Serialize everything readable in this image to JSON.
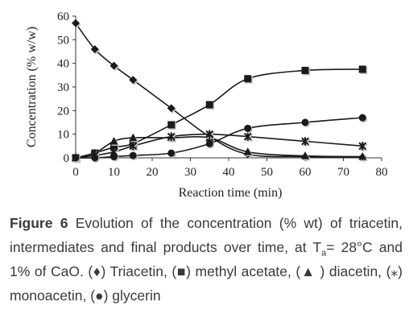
{
  "chart_data": {
    "type": "line",
    "xlabel": "Reaction time (min)",
    "ylabel": "Concentration (% w/w)",
    "xlim": [
      0,
      80
    ],
    "ylim": [
      0,
      60
    ],
    "xticks": [
      "0",
      "10",
      "20",
      "30",
      "40",
      "50",
      "60",
      "70",
      "80"
    ],
    "yticks": [
      "0",
      "10",
      "20",
      "30",
      "40",
      "50",
      "60"
    ],
    "grid": false,
    "series": [
      {
        "marker": "diamond",
        "x": [
          0,
          5,
          10,
          15,
          25,
          35,
          45,
          60,
          75
        ],
        "y": [
          57,
          46,
          39,
          33,
          21,
          9,
          1.5,
          0.5,
          0.3
        ]
      },
      {
        "marker": "square",
        "x": [
          0,
          5,
          10,
          15,
          25,
          35,
          45,
          60,
          75
        ],
        "y": [
          0,
          2,
          4.5,
          6,
          14,
          22.5,
          33.5,
          37,
          37.5
        ]
      },
      {
        "marker": "triangle",
        "x": [
          0,
          5,
          10,
          15,
          25,
          35,
          45,
          60,
          75
        ],
        "y": [
          0,
          2,
          7,
          8.5,
          8.5,
          8.5,
          2.5,
          0.8,
          0.5
        ]
      },
      {
        "marker": "star",
        "x": [
          0,
          5,
          10,
          15,
          25,
          35,
          45,
          60,
          75
        ],
        "y": [
          0,
          1,
          2.5,
          5,
          9,
          10,
          9,
          7,
          5
        ]
      },
      {
        "marker": "circle",
        "x": [
          0,
          5,
          10,
          15,
          25,
          35,
          45,
          60,
          75
        ],
        "y": [
          0,
          0,
          0.5,
          1,
          2,
          6,
          12.5,
          15,
          17
        ]
      }
    ]
  },
  "caption": {
    "figure_label": "Figure 6",
    "text_before_sub": "Evolution of the concentration (% wt) of triacetin, intermediates and final products over time, at T",
    "subscript": "a",
    "text_after_sub": "= 28°C and 1% of CaO. (♦) Triacetin, (■) methyl acetate, (▲ ) diacetin, (⁎) monoacetin, (●) glycerin"
  }
}
